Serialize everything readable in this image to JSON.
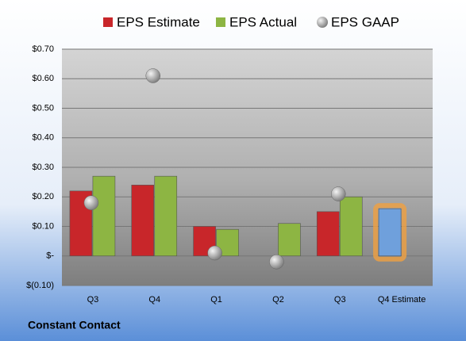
{
  "chart_data": {
    "type": "bar",
    "caption": "Constant Contact",
    "categories": [
      "Q3",
      "Q4",
      "Q1",
      "Q2",
      "Q3",
      "Q4 Estimate"
    ],
    "series": [
      {
        "name": "EPS Estimate",
        "color": "#c8262a",
        "values": [
          0.22,
          0.24,
          0.1,
          null,
          0.15,
          0.16
        ]
      },
      {
        "name": "EPS Actual",
        "color": "#8db543",
        "values": [
          0.27,
          0.27,
          0.09,
          0.11,
          0.2,
          null
        ]
      },
      {
        "name": "EPS GAAP",
        "color": "#a8a8a8",
        "marker": "ball",
        "values": [
          0.18,
          0.61,
          0.01,
          -0.02,
          0.21,
          null
        ]
      }
    ],
    "highlight": {
      "series": 0,
      "index": 5,
      "color": "#6fa0dc",
      "glow": "#f0a040"
    },
    "ylim": [
      -0.1,
      0.7
    ],
    "yticks": [
      {
        "value": -0.1,
        "label": "$(0.10)"
      },
      {
        "value": 0,
        "label": "$-"
      },
      {
        "value": 0.1,
        "label": "$0.10"
      },
      {
        "value": 0.2,
        "label": "$0.20"
      },
      {
        "value": 0.3,
        "label": "$0.30"
      },
      {
        "value": 0.4,
        "label": "$0.40"
      },
      {
        "value": 0.5,
        "label": "$0.50"
      },
      {
        "value": 0.6,
        "label": "$0.60"
      },
      {
        "value": 0.7,
        "label": "$0.70"
      }
    ],
    "grid": true
  }
}
